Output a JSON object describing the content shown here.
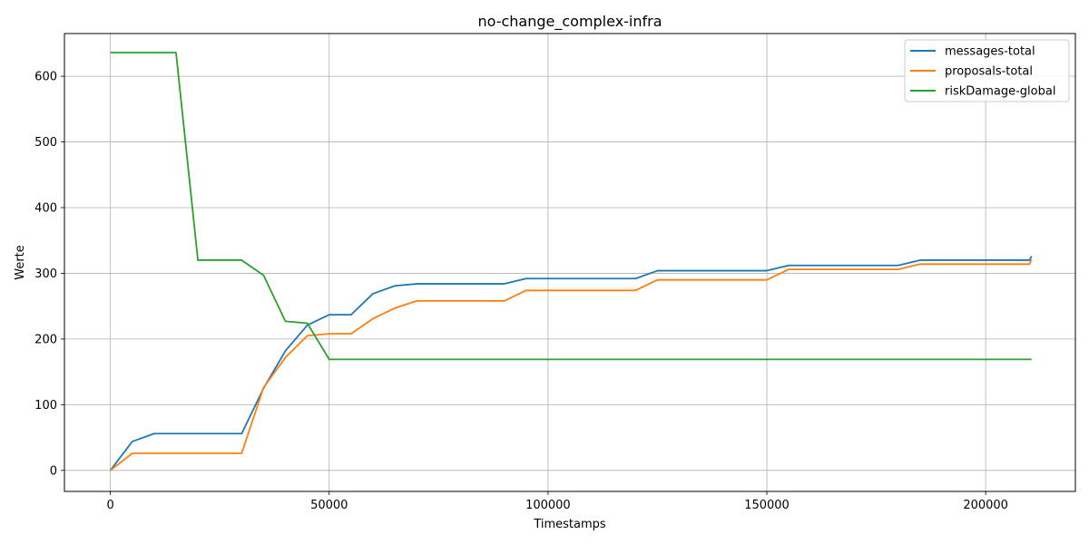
{
  "chart_data": {
    "type": "line",
    "title": "no-change_complex-infra",
    "xlabel": "Timestamps",
    "ylabel": "Werte",
    "xlim": [
      -10500,
      220500
    ],
    "ylim": [
      -32,
      665
    ],
    "xticks": [
      0,
      50000,
      100000,
      150000,
      200000
    ],
    "yticks": [
      0,
      100,
      200,
      300,
      400,
      500,
      600
    ],
    "grid": true,
    "legend_position": "top-right",
    "series": [
      {
        "name": "messages-total",
        "color": "#1f77b4",
        "x": [
          0,
          5000,
          10000,
          15000,
          20000,
          25000,
          30000,
          35000,
          40000,
          45000,
          50000,
          55000,
          60000,
          65000,
          70000,
          75000,
          80000,
          85000,
          90000,
          95000,
          100000,
          105000,
          110000,
          115000,
          120000,
          125000,
          130000,
          135000,
          140000,
          145000,
          150000,
          155000,
          160000,
          165000,
          170000,
          175000,
          180000,
          185000,
          190000,
          195000,
          200000,
          205000,
          210000,
          210500
        ],
        "values": [
          0,
          44,
          56,
          56,
          56,
          56,
          56,
          125,
          182,
          221,
          237,
          237,
          269,
          281,
          284,
          284,
          284,
          284,
          284,
          292,
          292,
          292,
          292,
          292,
          292,
          304,
          304,
          304,
          304,
          304,
          304,
          312,
          312,
          312,
          312,
          312,
          312,
          320,
          320,
          320,
          320,
          320,
          320,
          326
        ]
      },
      {
        "name": "proposals-total",
        "color": "#ff7f0e",
        "x": [
          0,
          5000,
          10000,
          15000,
          20000,
          25000,
          30000,
          35000,
          40000,
          45000,
          50000,
          55000,
          60000,
          65000,
          70000,
          75000,
          80000,
          85000,
          90000,
          95000,
          100000,
          105000,
          110000,
          115000,
          120000,
          125000,
          130000,
          135000,
          140000,
          145000,
          150000,
          155000,
          160000,
          165000,
          170000,
          175000,
          180000,
          185000,
          190000,
          195000,
          200000,
          205000,
          210000,
          210500
        ],
        "values": [
          0,
          26,
          26,
          26,
          26,
          26,
          26,
          126,
          172,
          205,
          208,
          208,
          231,
          247,
          258,
          258,
          258,
          258,
          258,
          274,
          274,
          274,
          274,
          274,
          274,
          290,
          290,
          290,
          290,
          290,
          290,
          306,
          306,
          306,
          306,
          306,
          306,
          314,
          314,
          314,
          314,
          314,
          314,
          321
        ]
      },
      {
        "name": "riskDamage-global",
        "color": "#2ca02c",
        "x": [
          0,
          5000,
          10000,
          15000,
          20000,
          25000,
          30000,
          35000,
          40000,
          45000,
          50000,
          55000,
          60000,
          100000,
          150000,
          200000,
          210500
        ],
        "values": [
          636,
          636,
          636,
          636,
          320,
          320,
          320,
          297,
          227,
          224,
          169,
          169,
          169,
          169,
          169,
          169,
          169
        ]
      }
    ]
  }
}
